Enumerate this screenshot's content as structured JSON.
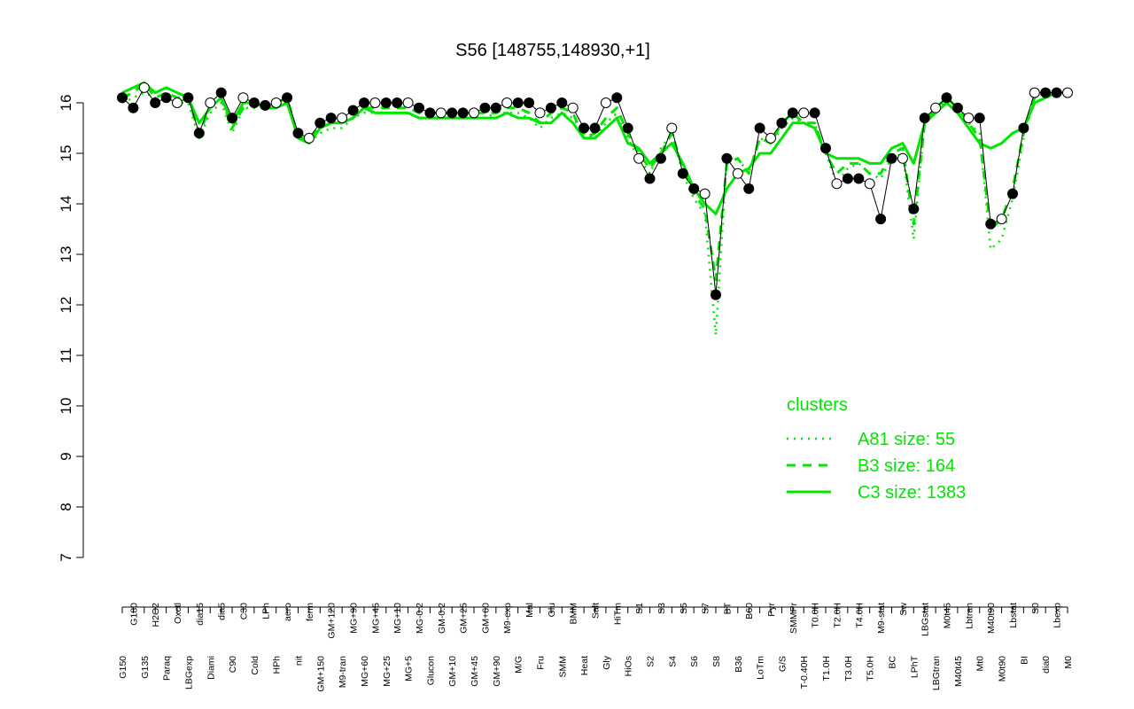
{
  "chart_data": {
    "type": "line",
    "title": "S56 [148755,148930,+1]",
    "xlabel": "",
    "ylabel": "",
    "ylim": [
      7,
      16.6
    ],
    "yticks": [
      7,
      8,
      9,
      10,
      11,
      12,
      13,
      14,
      15,
      16
    ],
    "grid": false,
    "colors": {
      "points": "#000000",
      "clusters": "#00e600"
    },
    "categories": [
      "G150",
      "G180",
      "G135",
      "H2O2",
      "Paraq",
      "Oxctl",
      "LBGexp",
      "dia15",
      "Diami",
      "dia5",
      "C90",
      "C30",
      "Cold",
      "LPh",
      "HPh",
      "aero",
      "nit",
      "ferm",
      "GM+150",
      "GM+120",
      "M9-tran",
      "MG+90",
      "MG+60",
      "MG+45",
      "MG+25",
      "MG+10",
      "MG+5",
      "MG-0.2",
      "Glucon",
      "GM-0.2",
      "GM+10",
      "GM+25",
      "GM+45",
      "GM+60",
      "GM+90",
      "M9-exp",
      "M/G",
      "Mal",
      "Fru",
      "Glu",
      "SMM",
      "BMM",
      "Heat",
      "Salt",
      "Gly",
      "HiTm",
      "HiOs",
      "S1",
      "S2",
      "S3",
      "S4",
      "S5",
      "S6",
      "S7",
      "S8",
      "BT",
      "B36",
      "B60",
      "LoTm",
      "Pyr",
      "G/S",
      "SMMPr",
      "T-0.40H",
      "T0.0H",
      "T1.0H",
      "T2.0H",
      "T3.0H",
      "T4.0H",
      "T5.0H",
      "M9-stat",
      "BC",
      "Sw",
      "LPhT",
      "LBGstat",
      "LBGtran",
      "M0t45",
      "M40t45",
      "Lbtran",
      "Mt0",
      "M40t90",
      "M0t90",
      "Lbstat",
      "BI",
      "S0",
      "dia0",
      "Lbexp",
      "M0"
    ],
    "values": [
      16.1,
      15.9,
      16.3,
      16.0,
      16.1,
      16.0,
      16.1,
      15.4,
      16.0,
      16.2,
      15.7,
      16.1,
      16.0,
      15.95,
      16.0,
      16.1,
      15.4,
      15.3,
      15.6,
      15.7,
      15.7,
      15.85,
      16.0,
      16.0,
      16.0,
      16.0,
      16.0,
      15.9,
      15.8,
      15.8,
      15.8,
      15.8,
      15.8,
      15.9,
      15.9,
      16.0,
      16.0,
      16.0,
      15.8,
      15.9,
      16.0,
      15.9,
      15.5,
      15.5,
      16.0,
      16.1,
      15.5,
      14.9,
      14.5,
      14.9,
      15.5,
      14.6,
      14.3,
      14.2,
      12.2,
      14.9,
      14.6,
      14.3,
      15.5,
      15.3,
      15.6,
      15.8,
      15.8,
      15.8,
      15.1,
      14.4,
      14.5,
      14.5,
      14.4,
      13.7,
      14.9,
      14.9,
      13.9,
      15.7,
      15.9,
      16.1,
      15.9,
      15.7,
      15.7,
      13.6,
      13.7,
      14.2,
      15.5,
      16.2,
      16.2,
      16.2,
      16.2
    ],
    "clusters": [
      {
        "name": "A81 size: 55",
        "style": "dotted",
        "values": [
          16.0,
          16.1,
          16.2,
          16.1,
          16.1,
          16.0,
          16.0,
          15.3,
          15.8,
          16.0,
          15.4,
          15.9,
          15.9,
          15.9,
          15.9,
          16.0,
          15.3,
          15.2,
          15.4,
          15.5,
          15.5,
          15.7,
          15.8,
          15.8,
          15.8,
          15.8,
          15.8,
          15.7,
          15.7,
          15.7,
          15.7,
          15.7,
          15.7,
          15.7,
          15.8,
          15.8,
          15.8,
          15.7,
          15.5,
          15.7,
          15.8,
          15.7,
          15.4,
          15.3,
          15.6,
          15.8,
          15.3,
          14.9,
          14.6,
          15.1,
          15.4,
          14.6,
          14.1,
          13.8,
          11.4,
          14.9,
          14.9,
          14.6,
          15.3,
          15.2,
          15.5,
          15.7,
          15.6,
          15.6,
          15.0,
          14.4,
          14.7,
          14.8,
          14.6,
          14.5,
          14.9,
          15.0,
          13.3,
          15.6,
          15.9,
          16.0,
          15.8,
          15.6,
          15.4,
          13.1,
          13.3,
          14.1,
          15.3,
          16.1,
          16.2,
          16.2,
          16.2
        ]
      },
      {
        "name": "B3 size: 164",
        "style": "dashed",
        "values": [
          16.1,
          16.2,
          16.4,
          16.1,
          16.2,
          16.1,
          16.1,
          15.4,
          15.9,
          16.1,
          15.5,
          15.9,
          16.0,
          15.9,
          16.0,
          16.1,
          15.3,
          15.3,
          15.5,
          15.6,
          15.6,
          15.8,
          15.9,
          15.9,
          15.9,
          15.9,
          15.9,
          15.8,
          15.8,
          15.8,
          15.8,
          15.8,
          15.8,
          15.8,
          15.8,
          15.9,
          15.9,
          15.8,
          15.6,
          15.8,
          15.9,
          15.8,
          15.3,
          15.4,
          15.7,
          15.9,
          15.4,
          15.0,
          14.7,
          15.0,
          15.4,
          14.7,
          14.2,
          13.9,
          12.5,
          14.8,
          14.9,
          14.6,
          15.3,
          15.2,
          15.6,
          15.8,
          15.6,
          15.6,
          15.0,
          14.6,
          14.8,
          14.8,
          14.6,
          14.6,
          15.0,
          15.1,
          13.6,
          15.6,
          15.9,
          16.1,
          15.9,
          15.6,
          15.3,
          13.5,
          13.7,
          14.3,
          15.4,
          16.1,
          16.2,
          16.2,
          16.2
        ]
      },
      {
        "name": "C3 size: 1383",
        "style": "solid",
        "values": [
          16.2,
          16.3,
          16.4,
          16.2,
          16.3,
          16.2,
          16.1,
          15.6,
          15.9,
          16.1,
          15.6,
          16.0,
          16.0,
          15.9,
          15.9,
          16.0,
          15.3,
          15.2,
          15.5,
          15.6,
          15.6,
          15.7,
          15.9,
          15.8,
          15.8,
          15.8,
          15.8,
          15.7,
          15.7,
          15.7,
          15.7,
          15.7,
          15.7,
          15.7,
          15.7,
          15.8,
          15.7,
          15.7,
          15.6,
          15.6,
          15.8,
          15.6,
          15.3,
          15.3,
          15.5,
          15.7,
          15.2,
          15.1,
          14.8,
          15.0,
          15.2,
          14.8,
          14.3,
          14.0,
          13.8,
          14.3,
          14.6,
          14.7,
          15.0,
          15.0,
          15.3,
          15.6,
          15.6,
          15.5,
          15.0,
          14.9,
          14.9,
          14.9,
          14.8,
          14.8,
          15.1,
          15.2,
          14.8,
          15.6,
          15.8,
          16.0,
          15.8,
          15.5,
          15.2,
          15.1,
          15.2,
          15.4,
          15.5,
          16.0,
          16.1,
          16.2,
          16.2
        ]
      }
    ],
    "legend": {
      "title": "clusters",
      "placement": "right",
      "entries": [
        "A81 size: 55",
        "B3 size: 164",
        "C3 size: 1383"
      ]
    }
  }
}
